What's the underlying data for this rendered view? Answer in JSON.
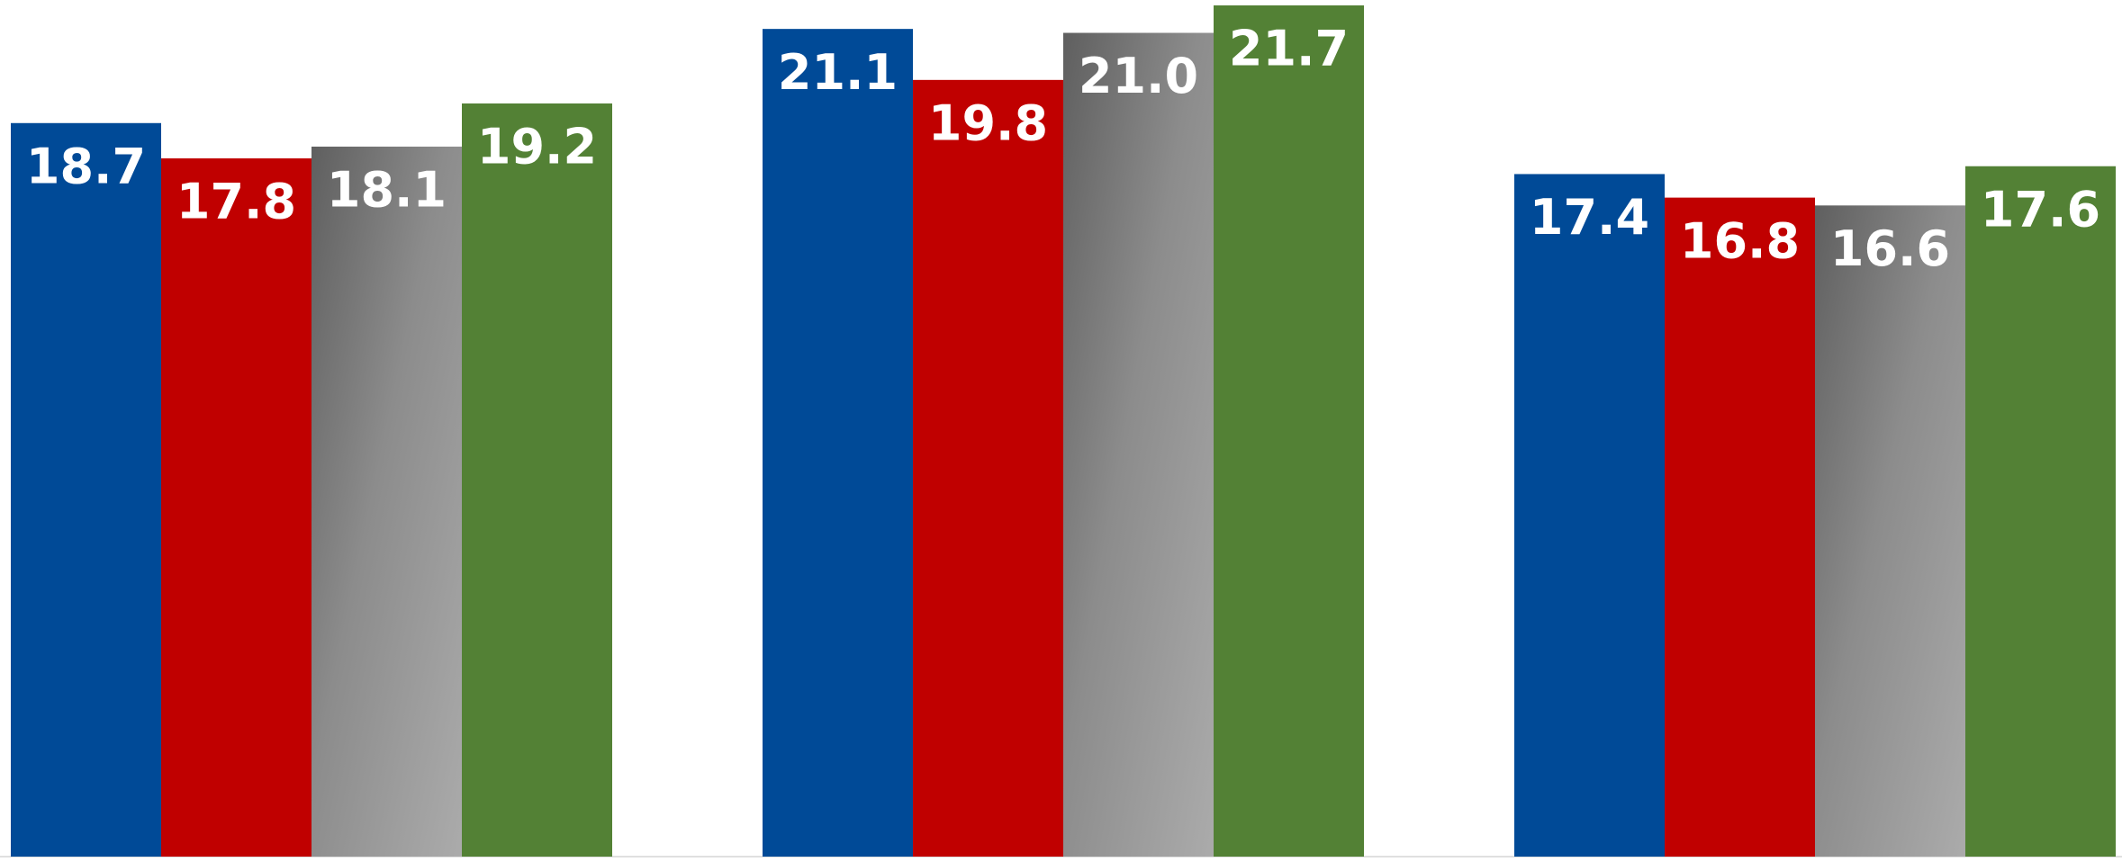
{
  "chart_data": {
    "type": "bar",
    "categories": [
      null,
      null,
      null
    ],
    "series": [
      {
        "color": "#004a97",
        "values": [
          18.7,
          21.1,
          17.4
        ],
        "value_labels": [
          "18.7",
          "21.1",
          "17.4"
        ]
      },
      {
        "color": "#c00000",
        "values": [
          17.8,
          19.8,
          16.8
        ],
        "value_labels": [
          "17.8",
          "19.8",
          "16.8"
        ]
      },
      {
        "color": "gradient-gray",
        "values": [
          18.1,
          21.0,
          16.6
        ],
        "value_labels": [
          "18.1",
          "21.0",
          "16.6"
        ]
      },
      {
        "color": "#538135",
        "values": [
          19.2,
          21.7,
          17.6
        ],
        "value_labels": [
          "19.2",
          "21.7",
          "17.6"
        ]
      }
    ],
    "ylim": [
      0,
      21.7
    ],
    "grid": false
  }
}
